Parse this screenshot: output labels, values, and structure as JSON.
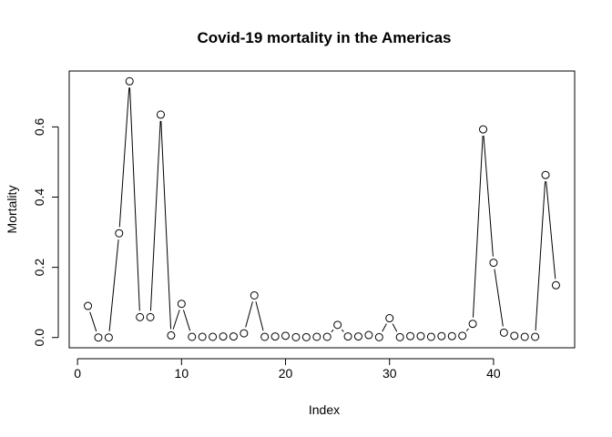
{
  "chart_data": {
    "type": "line",
    "title": "Covid-19 mortality in the Americas",
    "xlabel": "Index",
    "ylabel": "Mortality",
    "xlim": [
      1,
      46
    ],
    "ylim": [
      0,
      0.73
    ],
    "xticks": [
      0,
      10,
      20,
      30,
      40
    ],
    "yticks": [
      0.0,
      0.2,
      0.4,
      0.6
    ],
    "ytick_labels": [
      "0.0",
      "0.2",
      "0.4",
      "0.6"
    ],
    "grid": false,
    "line_style": "both-points-and-lines",
    "series": [
      {
        "x": [
          1,
          2,
          3,
          4,
          5,
          6,
          7,
          8,
          9,
          10,
          11,
          12,
          13,
          14,
          15,
          16,
          17,
          18,
          19,
          20,
          21,
          22,
          23,
          24,
          25,
          26,
          27,
          28,
          29,
          30,
          31,
          32,
          33,
          34,
          35,
          36,
          37,
          38,
          39,
          40,
          41,
          42,
          43,
          44,
          45,
          46
        ],
        "values": [
          0.09,
          0.0,
          0.0,
          0.297,
          0.73,
          0.058,
          0.058,
          0.635,
          0.006,
          0.096,
          0.002,
          0.002,
          0.002,
          0.003,
          0.003,
          0.012,
          0.12,
          0.002,
          0.003,
          0.005,
          0.001,
          0.001,
          0.002,
          0.002,
          0.036,
          0.003,
          0.003,
          0.007,
          0.001,
          0.055,
          0.001,
          0.004,
          0.004,
          0.002,
          0.004,
          0.004,
          0.005,
          0.039,
          0.593,
          0.213,
          0.014,
          0.005,
          0.002,
          0.002,
          0.463,
          0.149
        ]
      }
    ]
  }
}
